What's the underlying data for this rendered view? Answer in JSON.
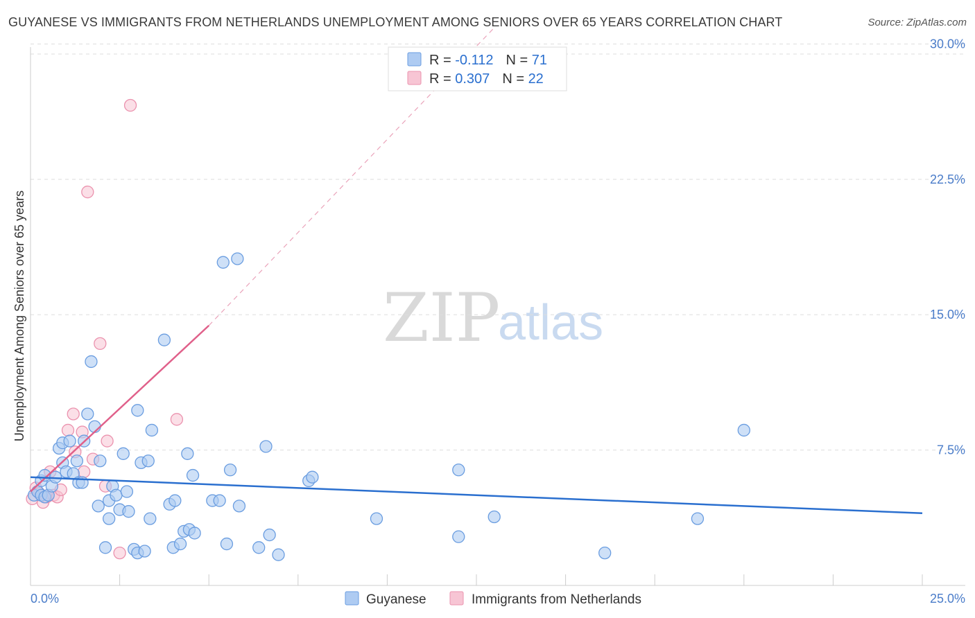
{
  "title": "GUYANESE VS IMMIGRANTS FROM NETHERLANDS UNEMPLOYMENT AMONG SENIORS OVER 65 YEARS CORRELATION CHART",
  "source": "Source: ZipAtlas.com",
  "watermark": {
    "zip": "ZIP",
    "atlas": "atlas"
  },
  "colors": {
    "guyanese_fill": "#aecbf2",
    "guyanese_stroke": "#6a9de0",
    "guyanese_line": "#2a6fcf",
    "netherlands_fill": "#f7c5d4",
    "netherlands_stroke": "#eb92ae",
    "netherlands_line": "#e0608a",
    "tick_blue": "#4a7cc9",
    "grid": "#dddddd"
  },
  "legend": {
    "rows": [
      {
        "r_label": "R = ",
        "r_value": "-0.112",
        "n_label": "N = ",
        "n_value": "71"
      },
      {
        "r_label": "R = ",
        "r_value": "0.307",
        "n_label": "N = ",
        "n_value": "22"
      }
    ]
  },
  "chart_data": {
    "type": "scatter",
    "title": "GUYANESE VS IMMIGRANTS FROM NETHERLANDS UNEMPLOYMENT AMONG SENIORS OVER 65 YEARS CORRELATION CHART",
    "xlabel": "",
    "ylabel": "Unemployment Among Seniors over 65 years",
    "xlim": [
      0,
      25
    ],
    "ylim": [
      0,
      30.9
    ],
    "x_tick_labels": [
      "0.0%",
      "25.0%"
    ],
    "y_ticks": [
      7.5,
      15.0,
      22.5,
      30.0
    ],
    "y_tick_labels": [
      "7.5%",
      "15.0%",
      "22.5%",
      "30.0%"
    ],
    "legend_position": "top-center",
    "series": [
      {
        "name": "Guyanese",
        "R": -0.112,
        "N": 71,
        "trend": {
          "x": [
            0,
            25
          ],
          "y": [
            6.0,
            4.0
          ],
          "extended": false
        },
        "points": [
          [
            0.1,
            5.0
          ],
          [
            0.2,
            5.2
          ],
          [
            0.3,
            5.0
          ],
          [
            0.3,
            5.8
          ],
          [
            0.4,
            4.9
          ],
          [
            0.4,
            6.1
          ],
          [
            0.5,
            5.0
          ],
          [
            0.6,
            5.5
          ],
          [
            0.7,
            6.0
          ],
          [
            0.8,
            7.6
          ],
          [
            0.9,
            6.8
          ],
          [
            0.9,
            7.9
          ],
          [
            1.0,
            6.3
          ],
          [
            1.1,
            8.0
          ],
          [
            1.2,
            6.2
          ],
          [
            1.3,
            6.9
          ],
          [
            1.35,
            5.7
          ],
          [
            1.45,
            5.7
          ],
          [
            1.5,
            8.0
          ],
          [
            1.6,
            9.5
          ],
          [
            1.7,
            12.4
          ],
          [
            1.8,
            8.8
          ],
          [
            1.9,
            4.4
          ],
          [
            1.95,
            6.9
          ],
          [
            2.1,
            2.1
          ],
          [
            2.2,
            3.7
          ],
          [
            2.2,
            4.7
          ],
          [
            2.3,
            5.5
          ],
          [
            2.4,
            5.0
          ],
          [
            2.5,
            4.2
          ],
          [
            2.6,
            7.3
          ],
          [
            2.7,
            5.2
          ],
          [
            2.75,
            4.1
          ],
          [
            2.9,
            2.0
          ],
          [
            3.0,
            1.8
          ],
          [
            3.0,
            9.7
          ],
          [
            3.1,
            6.8
          ],
          [
            3.2,
            1.9
          ],
          [
            3.3,
            6.9
          ],
          [
            3.35,
            3.7
          ],
          [
            3.4,
            8.6
          ],
          [
            3.75,
            13.6
          ],
          [
            3.9,
            4.5
          ],
          [
            4.0,
            2.1
          ],
          [
            4.05,
            4.7
          ],
          [
            4.2,
            2.3
          ],
          [
            4.3,
            3.0
          ],
          [
            4.4,
            7.3
          ],
          [
            4.45,
            3.1
          ],
          [
            4.55,
            6.1
          ],
          [
            4.6,
            2.9
          ],
          [
            5.1,
            4.7
          ],
          [
            5.3,
            4.7
          ],
          [
            5.5,
            2.3
          ],
          [
            5.6,
            6.4
          ],
          [
            5.85,
            4.4
          ],
          [
            6.4,
            2.1
          ],
          [
            6.6,
            7.7
          ],
          [
            6.7,
            2.8
          ],
          [
            6.95,
            1.7
          ],
          [
            7.8,
            5.8
          ],
          [
            7.9,
            6.0
          ],
          [
            9.7,
            3.7
          ],
          [
            12.0,
            6.4
          ],
          [
            12.0,
            2.7
          ],
          [
            13.0,
            3.8
          ],
          [
            16.1,
            1.8
          ],
          [
            18.7,
            3.7
          ],
          [
            20.0,
            8.6
          ],
          [
            5.4,
            17.9
          ],
          [
            5.8,
            18.1
          ]
        ]
      },
      {
        "name": "Immigrants from Netherlands",
        "R": 0.307,
        "N": 22,
        "trend": {
          "x": [
            0,
            5.0
          ],
          "y": [
            5.2,
            14.4
          ],
          "dashed_extension_x": [
            5.0,
            13.0
          ],
          "dashed_extension_y": [
            14.4,
            30.9
          ]
        },
        "points": [
          [
            0.05,
            4.8
          ],
          [
            0.15,
            5.4
          ],
          [
            0.25,
            5.1
          ],
          [
            0.35,
            4.6
          ],
          [
            0.45,
            4.9
          ],
          [
            0.55,
            6.3
          ],
          [
            0.65,
            5.0
          ],
          [
            0.75,
            4.9
          ],
          [
            0.85,
            5.3
          ],
          [
            1.05,
            8.6
          ],
          [
            1.2,
            9.5
          ],
          [
            1.25,
            7.4
          ],
          [
            1.45,
            8.5
          ],
          [
            1.5,
            6.3
          ],
          [
            1.6,
            21.8
          ],
          [
            1.75,
            7.0
          ],
          [
            1.95,
            13.4
          ],
          [
            2.1,
            5.5
          ],
          [
            2.15,
            8.0
          ],
          [
            2.5,
            1.8
          ],
          [
            2.8,
            26.6
          ],
          [
            4.1,
            9.2
          ]
        ]
      }
    ]
  },
  "bottom_legend": {
    "items": [
      {
        "label": "Guyanese"
      },
      {
        "label": "Immigrants from Netherlands"
      }
    ]
  }
}
